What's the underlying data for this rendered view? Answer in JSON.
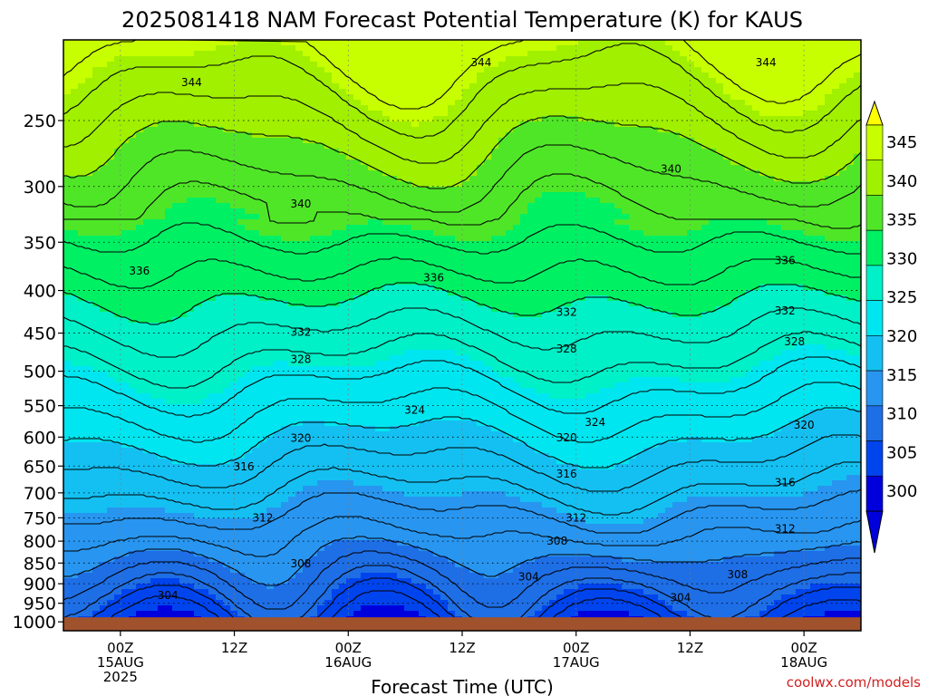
{
  "chart_data": {
    "type": "heatmap",
    "title": "2025081418 NAM Forecast Potential Temperature (K) for KAUS",
    "xlabel": "Forecast Time (UTC)",
    "ylabel": "",
    "credit": "coolwx.com/models",
    "x_ticks": [
      {
        "hour": 6,
        "lines": [
          "00Z",
          "15AUG",
          "2025"
        ]
      },
      {
        "hour": 18,
        "lines": [
          "12Z"
        ]
      },
      {
        "hour": 30,
        "lines": [
          "00Z",
          "16AUG"
        ]
      },
      {
        "hour": 42,
        "lines": [
          "12Z"
        ]
      },
      {
        "hour": 54,
        "lines": [
          "00Z",
          "17AUG"
        ]
      },
      {
        "hour": 66,
        "lines": [
          "12Z"
        ]
      },
      {
        "hour": 78,
        "lines": [
          "00Z",
          "18AUG"
        ]
      }
    ],
    "xlim": [
      0,
      84
    ],
    "y_axis": {
      "scale": "log",
      "unit": "hPa",
      "range": [
        200,
        1025
      ],
      "ticks": [
        250,
        300,
        350,
        400,
        450,
        500,
        550,
        600,
        650,
        700,
        750,
        800,
        850,
        900,
        950,
        1000
      ]
    },
    "grid": true,
    "colorbar": {
      "levels": [
        300,
        305,
        310,
        315,
        320,
        325,
        330,
        335,
        340,
        345
      ],
      "tick_labels": [
        "300",
        "305",
        "310",
        "315",
        "320",
        "325",
        "330",
        "335",
        "340",
        "345"
      ],
      "colors": [
        "#0000dd",
        "#0044ee",
        "#1e6ee6",
        "#2896f0",
        "#14c0f2",
        "#00e6f0",
        "#00f0c8",
        "#00f064",
        "#50e628",
        "#a0f000",
        "#c8ff00",
        "#ffff00"
      ],
      "extend": "both"
    },
    "ground_color": "#a0522d",
    "contour_labels": [
      {
        "value": 344,
        "hour": 13.5,
        "p": 225
      },
      {
        "value": 344,
        "hour": 44,
        "p": 213
      },
      {
        "value": 344,
        "hour": 74,
        "p": 213
      },
      {
        "value": 340,
        "hour": 25,
        "p": 315
      },
      {
        "value": 340,
        "hour": 64,
        "p": 286
      },
      {
        "value": 336,
        "hour": 8,
        "p": 379
      },
      {
        "value": 336,
        "hour": 39,
        "p": 386
      },
      {
        "value": 336,
        "hour": 76,
        "p": 368
      },
      {
        "value": 332,
        "hour": 25,
        "p": 449
      },
      {
        "value": 332,
        "hour": 53,
        "p": 425
      },
      {
        "value": 332,
        "hour": 76,
        "p": 423
      },
      {
        "value": 328,
        "hour": 25,
        "p": 484
      },
      {
        "value": 328,
        "hour": 53,
        "p": 470
      },
      {
        "value": 328,
        "hour": 77,
        "p": 461
      },
      {
        "value": 324,
        "hour": 37,
        "p": 557
      },
      {
        "value": 324,
        "hour": 56,
        "p": 576
      },
      {
        "value": 320,
        "hour": 25,
        "p": 602
      },
      {
        "value": 320,
        "hour": 53,
        "p": 601
      },
      {
        "value": 320,
        "hour": 78,
        "p": 580
      },
      {
        "value": 316,
        "hour": 19,
        "p": 651
      },
      {
        "value": 316,
        "hour": 53,
        "p": 664
      },
      {
        "value": 316,
        "hour": 76,
        "p": 680
      },
      {
        "value": 312,
        "hour": 21,
        "p": 750
      },
      {
        "value": 312,
        "hour": 54,
        "p": 750
      },
      {
        "value": 312,
        "hour": 76,
        "p": 773
      },
      {
        "value": 308,
        "hour": 25,
        "p": 852
      },
      {
        "value": 308,
        "hour": 52,
        "p": 800
      },
      {
        "value": 308,
        "hour": 71,
        "p": 878
      },
      {
        "value": 304,
        "hour": 11,
        "p": 930
      },
      {
        "value": 304,
        "hour": 49,
        "p": 883
      },
      {
        "value": 304,
        "hour": 65,
        "p": 935
      }
    ]
  }
}
